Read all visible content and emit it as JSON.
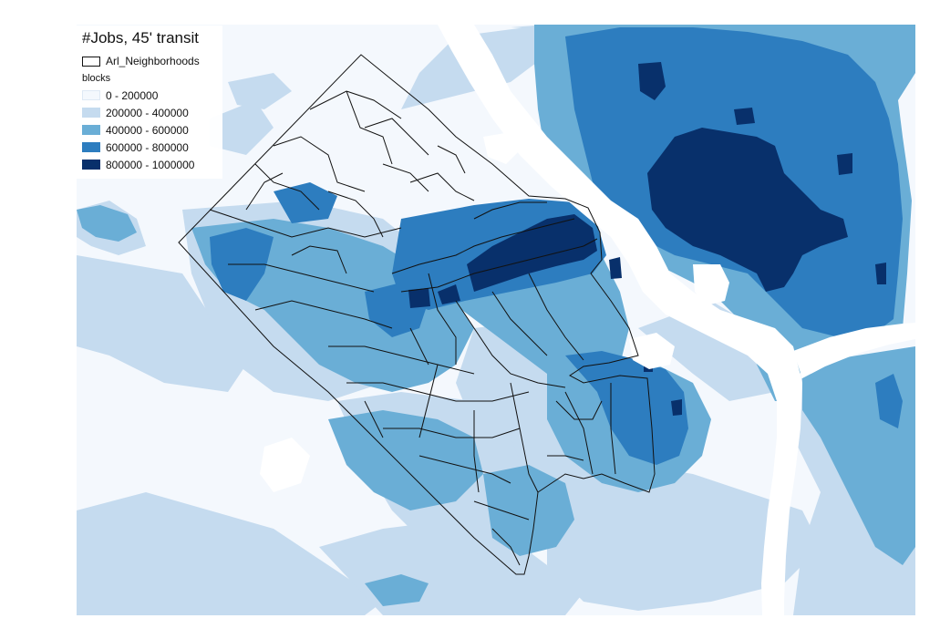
{
  "legend": {
    "title": "#Jobs, 45' transit",
    "layer_label": "Arl_Neighborhoods",
    "group_label": "blocks",
    "classes": [
      {
        "label": "0 - 200000",
        "color": "#f4f8fd"
      },
      {
        "label": "200000 - 400000",
        "color": "#c5dbef"
      },
      {
        "label": "400000 - 600000",
        "color": "#6aaed6"
      },
      {
        "label": "600000 - 800000",
        "color": "#2d7dbf"
      },
      {
        "label": "800000 - 1000000",
        "color": "#08306b"
      }
    ]
  },
  "colors": {
    "river": "#ffffff",
    "outline": "#111111"
  }
}
